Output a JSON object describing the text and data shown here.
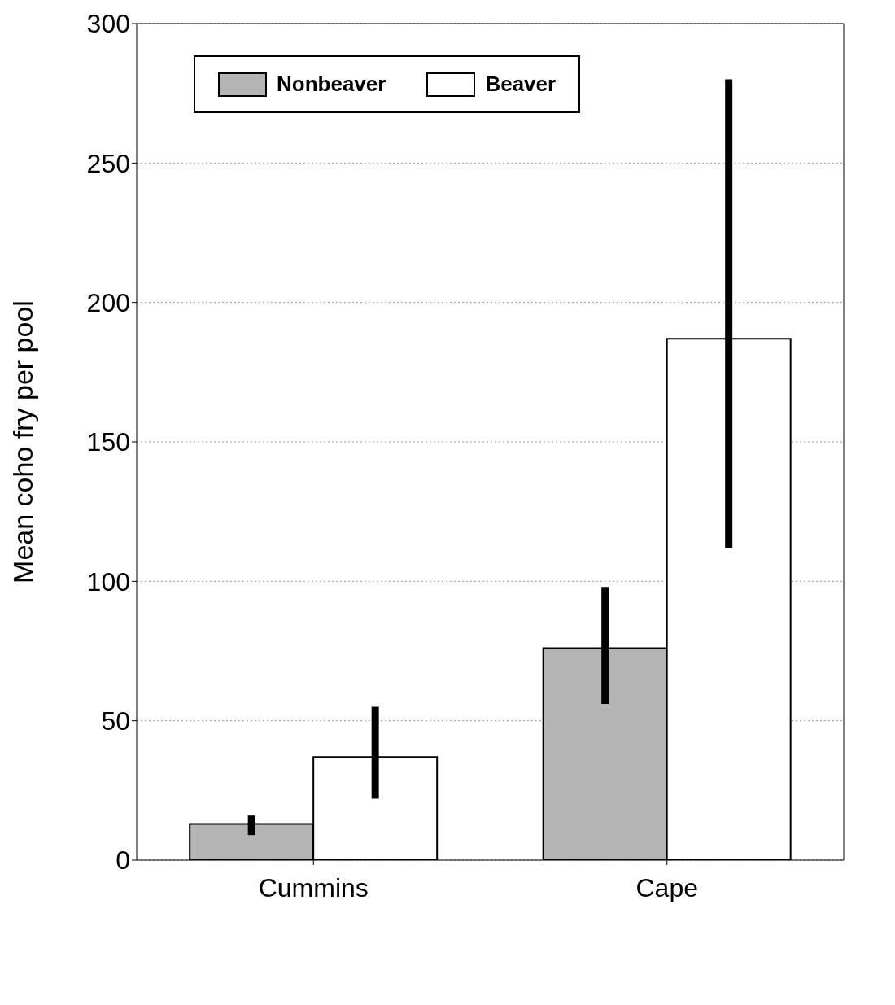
{
  "chart_data": {
    "type": "bar",
    "ylabel": "Mean coho fry per pool",
    "categories": [
      "Cummins",
      "Cape"
    ],
    "series": [
      {
        "name": "Nonbeaver",
        "color": "#b4b4b4",
        "values": [
          13,
          76
        ],
        "errors": [
          [
            9,
            16
          ],
          [
            56,
            98
          ]
        ]
      },
      {
        "name": "Beaver",
        "color": "#ffffff",
        "values": [
          37,
          187
        ],
        "errors": [
          [
            22,
            55
          ],
          [
            112,
            280
          ]
        ]
      }
    ],
    "ylim": [
      0,
      300
    ],
    "yticks": [
      0,
      50,
      100,
      150,
      200,
      250,
      300
    ],
    "grid": "y",
    "legend": "top left"
  }
}
